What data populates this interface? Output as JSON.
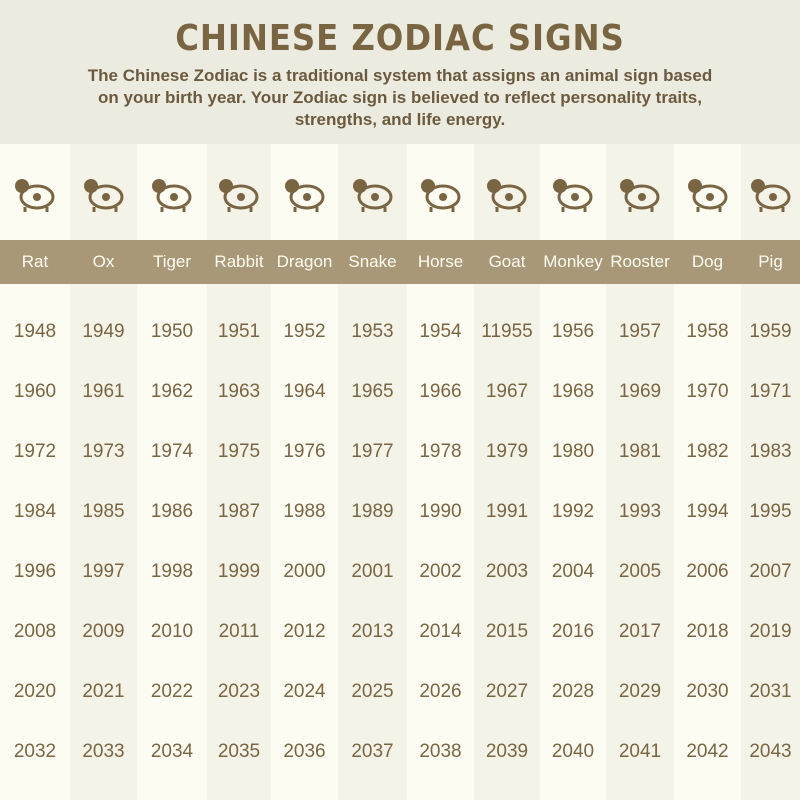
{
  "header": {
    "title": "CHINESE ZODIAC SIGNS",
    "description": "The Chinese Zodiac is a traditional system that assigns an animal sign based on your birth year. Your Zodiac sign is believed to reflect personality traits, strengths, and life energy."
  },
  "colors": {
    "text": "#7a6542",
    "header_band": "#a89878",
    "background": "#fdfcf2",
    "alt_column": "#f4f3e8"
  },
  "signs": [
    {
      "name": "Rat",
      "icon": "rat-icon",
      "years": [
        "1948",
        "1960",
        "1972",
        "1984",
        "1996",
        "2008",
        "2020",
        "2032"
      ]
    },
    {
      "name": "Ox",
      "icon": "ox-icon",
      "years": [
        "1949",
        "1961",
        "1973",
        "1985",
        "1997",
        "2009",
        "2021",
        "2033"
      ]
    },
    {
      "name": "Tiger",
      "icon": "tiger-icon",
      "years": [
        "1950",
        "1962",
        "1974",
        "1986",
        "1998",
        "2010",
        "2022",
        "2034"
      ]
    },
    {
      "name": "Rabbit",
      "icon": "rabbit-icon",
      "years": [
        "1951",
        "1963",
        "1975",
        "1987",
        "1999",
        "2011",
        "2023",
        "2035"
      ]
    },
    {
      "name": "Dragon",
      "icon": "dragon-icon",
      "years": [
        "1952",
        "1964",
        "1976",
        "1988",
        "2000",
        "2012",
        "2024",
        "2036"
      ]
    },
    {
      "name": "Snake",
      "icon": "snake-icon",
      "years": [
        "1953",
        "1965",
        "1977",
        "1989",
        "2001",
        "2013",
        "2025",
        "2037"
      ]
    },
    {
      "name": "Horse",
      "icon": "horse-icon",
      "years": [
        "1954",
        "1966",
        "1978",
        "1990",
        "2002",
        "2014",
        "2026",
        "2038"
      ]
    },
    {
      "name": "Goat",
      "icon": "goat-icon",
      "years": [
        "11955",
        "1967",
        "1979",
        "1991",
        "2003",
        "2015",
        "2027",
        "2039"
      ]
    },
    {
      "name": "Monkey",
      "icon": "monkey-icon",
      "years": [
        "1956",
        "1968",
        "1980",
        "1992",
        "2004",
        "2016",
        "2028",
        "2040"
      ]
    },
    {
      "name": "Rooster",
      "icon": "rooster-icon",
      "years": [
        "1957",
        "1969",
        "1981",
        "1993",
        "2005",
        "2017",
        "2029",
        "2041"
      ]
    },
    {
      "name": "Dog",
      "icon": "dog-icon",
      "years": [
        "1958",
        "1970",
        "1982",
        "1994",
        "2006",
        "2018",
        "2030",
        "2042"
      ]
    },
    {
      "name": "Pig",
      "icon": "pig-icon",
      "years": [
        "1959",
        "1971",
        "1983",
        "1995",
        "2007",
        "2019",
        "2031",
        "2043"
      ]
    }
  ]
}
